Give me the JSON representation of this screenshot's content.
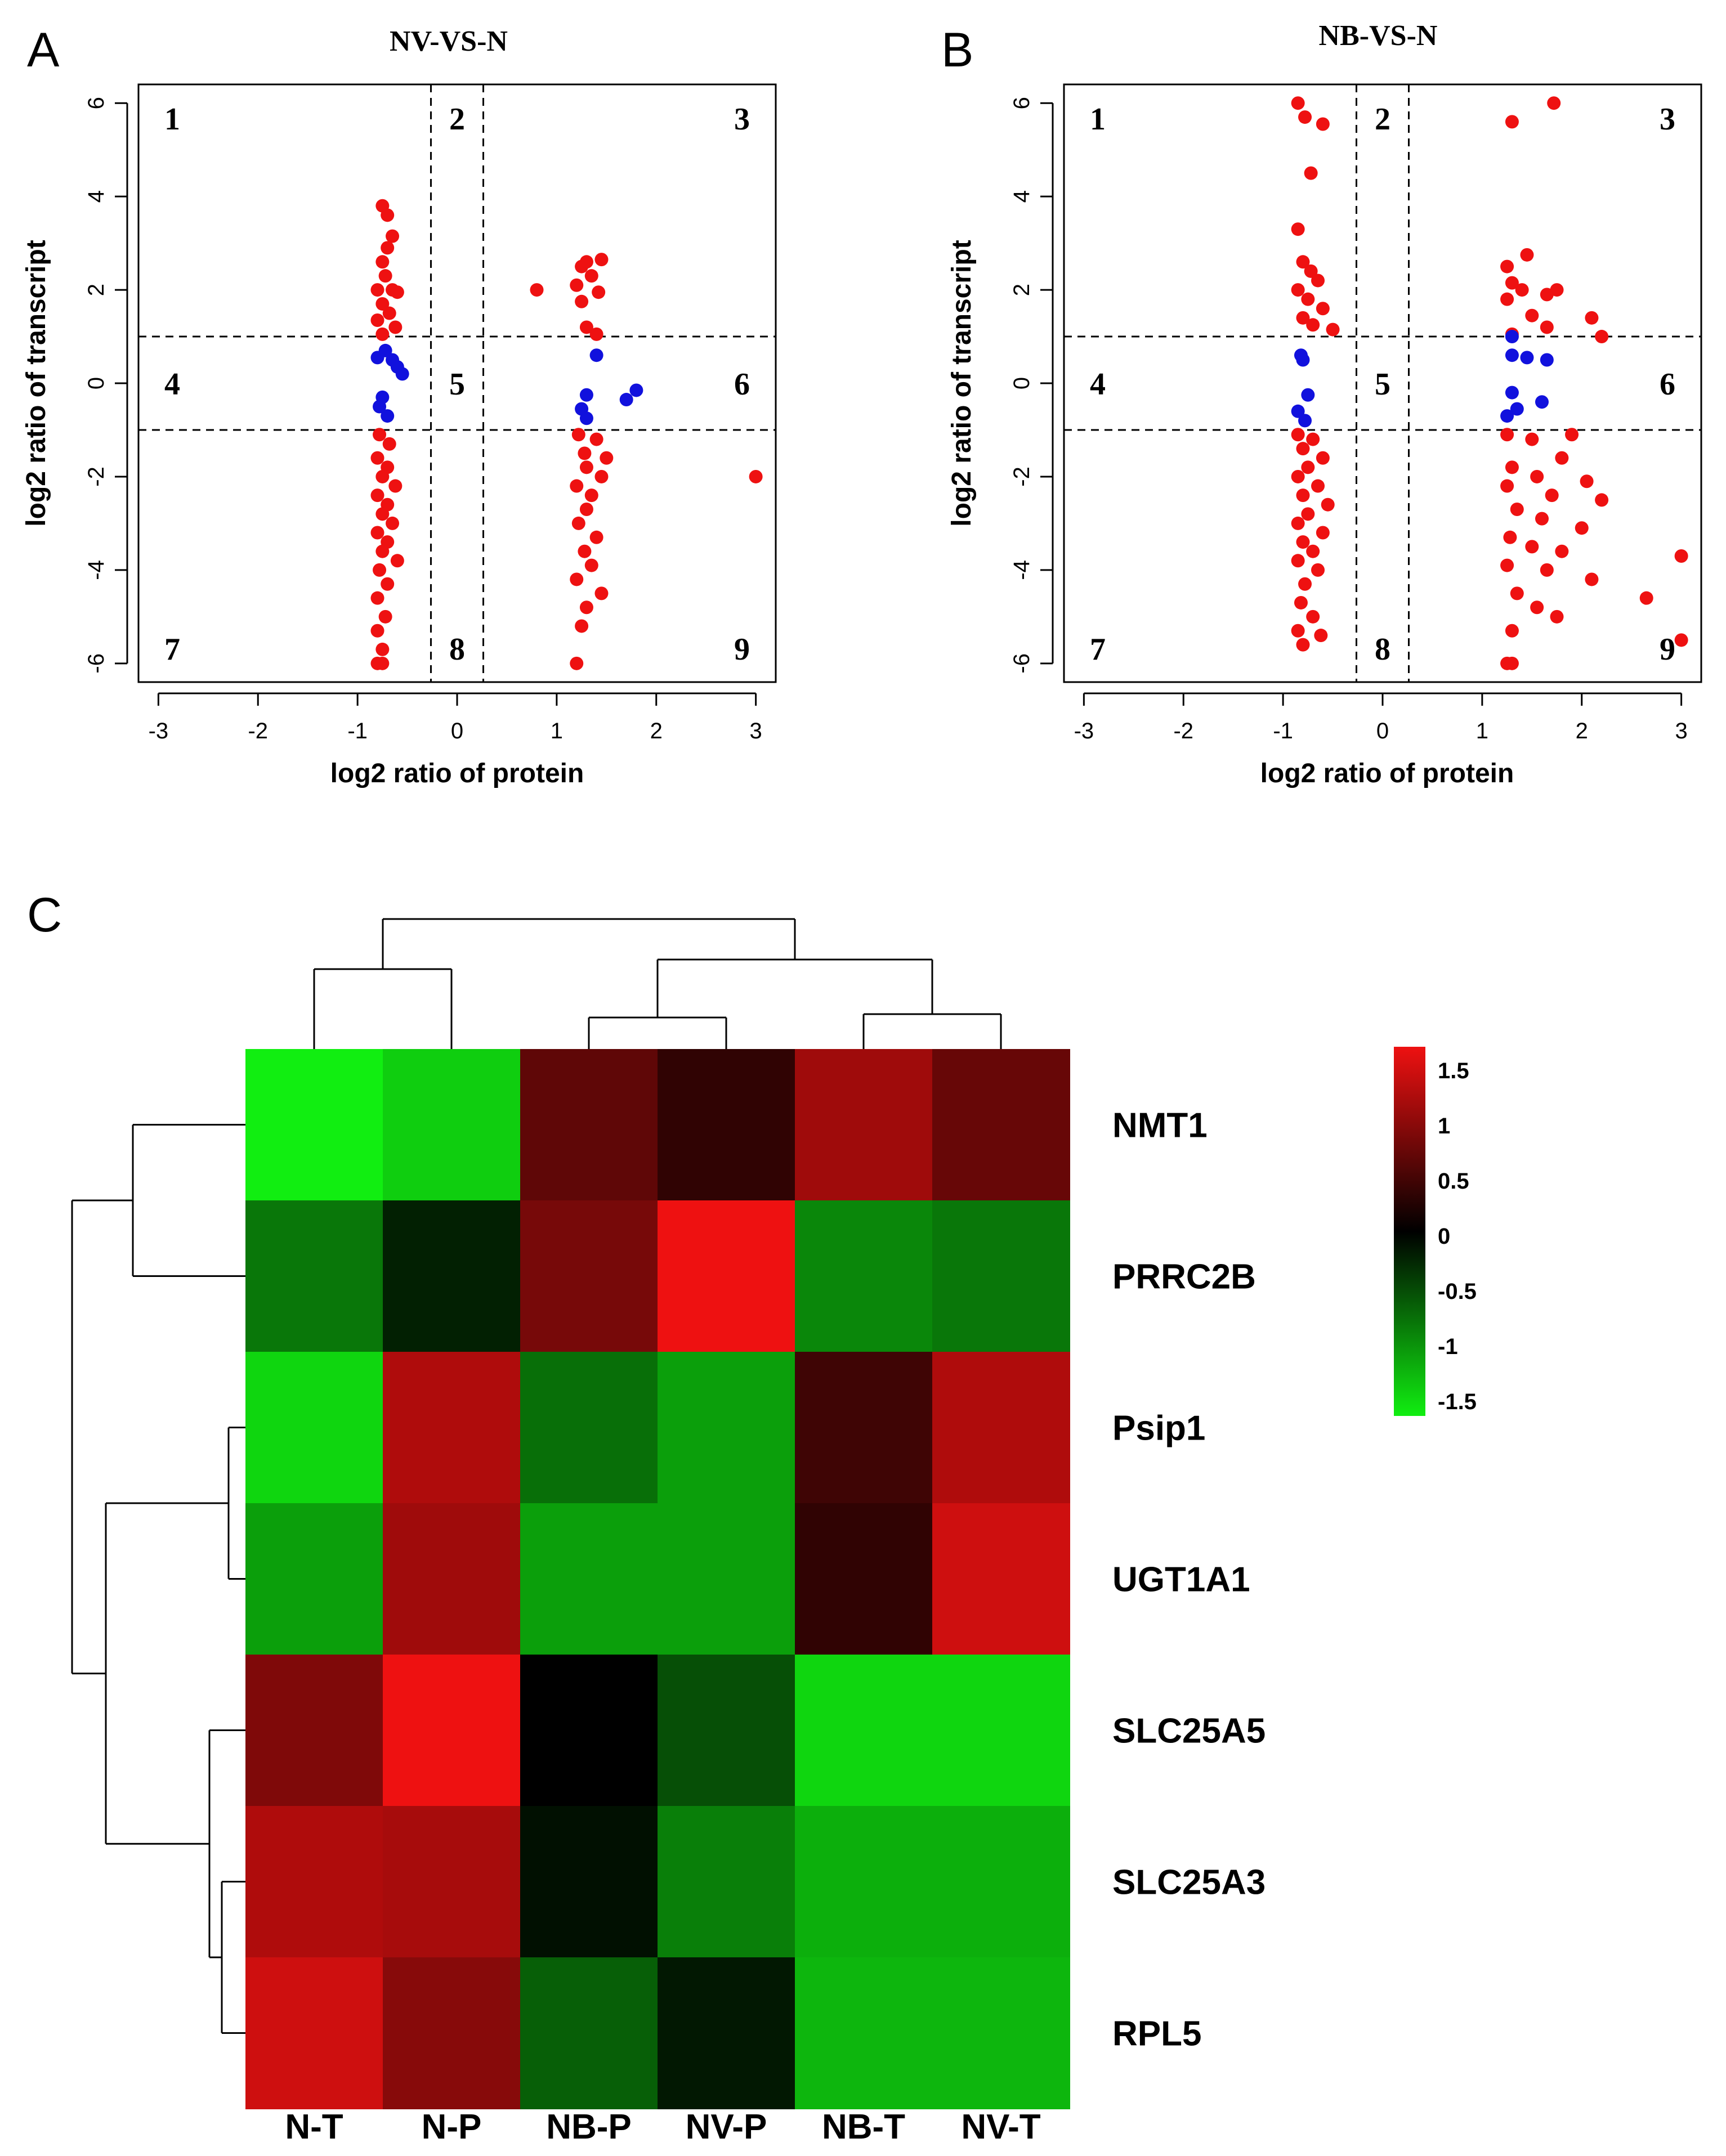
{
  "chart_data": [
    {
      "panel": "A",
      "type": "scatter",
      "title": "NV-VS-N",
      "xlabel": "log2 ratio of protein",
      "ylabel": "log2 ratio of transcript",
      "xlim": [
        -3.2,
        3.2
      ],
      "ylim": [
        -6.4,
        6.4
      ],
      "xticks": [
        -3,
        -2,
        -1,
        0,
        1,
        2,
        3
      ],
      "yticks": [
        -6,
        -4,
        -2,
        0,
        2,
        4,
        6
      ],
      "vlines": [
        -0.263,
        0.263
      ],
      "hlines": [
        -1,
        1
      ],
      "quadrant_labels": [
        "1",
        "2",
        "3",
        "4",
        "5",
        "6",
        "7",
        "8",
        "9"
      ],
      "colors": {
        "significant": "#ee1111",
        "non_significant": "#1111dd"
      },
      "red_points": [
        [
          -0.75,
          3.8
        ],
        [
          -0.7,
          3.6
        ],
        [
          -0.65,
          3.15
        ],
        [
          -0.7,
          2.9
        ],
        [
          -0.75,
          2.6
        ],
        [
          -0.72,
          2.3
        ],
        [
          -0.8,
          2.0
        ],
        [
          -0.65,
          2.0
        ],
        [
          -0.6,
          1.95
        ],
        [
          -0.75,
          1.7
        ],
        [
          -0.68,
          1.5
        ],
        [
          -0.8,
          1.35
        ],
        [
          -0.62,
          1.2
        ],
        [
          -0.75,
          1.05
        ],
        [
          -0.78,
          -1.1
        ],
        [
          -0.68,
          -1.3
        ],
        [
          -0.8,
          -1.6
        ],
        [
          -0.7,
          -1.8
        ],
        [
          -0.75,
          -2.0
        ],
        [
          -0.62,
          -2.2
        ],
        [
          -0.8,
          -2.4
        ],
        [
          -0.7,
          -2.6
        ],
        [
          -0.75,
          -2.8
        ],
        [
          -0.65,
          -3.0
        ],
        [
          -0.8,
          -3.2
        ],
        [
          -0.7,
          -3.4
        ],
        [
          -0.75,
          -3.6
        ],
        [
          -0.6,
          -3.8
        ],
        [
          -0.78,
          -4.0
        ],
        [
          -0.7,
          -4.3
        ],
        [
          -0.8,
          -4.6
        ],
        [
          -0.72,
          -5.0
        ],
        [
          -0.8,
          -5.3
        ],
        [
          -0.75,
          -5.7
        ],
        [
          -0.8,
          -6.0
        ],
        [
          -0.75,
          -6.0
        ],
        [
          0.8,
          2.0
        ],
        [
          1.25,
          2.5
        ],
        [
          1.3,
          2.6
        ],
        [
          1.45,
          2.65
        ],
        [
          1.35,
          2.3
        ],
        [
          1.2,
          2.1
        ],
        [
          1.42,
          1.95
        ],
        [
          1.25,
          1.75
        ],
        [
          1.3,
          1.2
        ],
        [
          1.4,
          1.05
        ],
        [
          1.22,
          -1.1
        ],
        [
          1.4,
          -1.2
        ],
        [
          1.28,
          -1.5
        ],
        [
          1.5,
          -1.6
        ],
        [
          1.3,
          -1.8
        ],
        [
          1.45,
          -2.0
        ],
        [
          1.2,
          -2.2
        ],
        [
          1.35,
          -2.4
        ],
        [
          1.3,
          -2.7
        ],
        [
          1.22,
          -3.0
        ],
        [
          1.4,
          -3.3
        ],
        [
          1.28,
          -3.6
        ],
        [
          1.35,
          -3.9
        ],
        [
          1.2,
          -4.2
        ],
        [
          1.45,
          -4.5
        ],
        [
          1.3,
          -4.8
        ],
        [
          1.25,
          -5.2
        ],
        [
          1.2,
          -6.0
        ],
        [
          3.0,
          -2.0
        ]
      ],
      "blue_points": [
        [
          -0.72,
          0.7
        ],
        [
          -0.65,
          0.5
        ],
        [
          -0.6,
          0.35
        ],
        [
          -0.55,
          0.2
        ],
        [
          -0.8,
          0.55
        ],
        [
          -0.75,
          -0.3
        ],
        [
          -0.78,
          -0.5
        ],
        [
          -0.7,
          -0.7
        ],
        [
          1.4,
          0.6
        ],
        [
          1.8,
          -0.15
        ],
        [
          1.7,
          -0.35
        ],
        [
          1.3,
          -0.25
        ],
        [
          1.25,
          -0.55
        ],
        [
          1.3,
          -0.75
        ]
      ]
    },
    {
      "panel": "B",
      "type": "scatter",
      "title": "NB-VS-N",
      "xlabel": "log2 ratio of protein",
      "ylabel": "log2 ratio of transcript",
      "xlim": [
        -3.2,
        3.2
      ],
      "ylim": [
        -6.4,
        6.4
      ],
      "xticks": [
        -3,
        -2,
        -1,
        0,
        1,
        2,
        3
      ],
      "yticks": [
        -6,
        -4,
        -2,
        0,
        2,
        4,
        6
      ],
      "vlines": [
        -0.263,
        0.263
      ],
      "hlines": [
        -1,
        1
      ],
      "quadrant_labels": [
        "1",
        "2",
        "3",
        "4",
        "5",
        "6",
        "7",
        "8",
        "9"
      ],
      "colors": {
        "significant": "#ee1111",
        "non_significant": "#1111dd"
      },
      "red_points": [
        [
          -0.85,
          6.0
        ],
        [
          -0.78,
          5.7
        ],
        [
          -0.6,
          5.55
        ],
        [
          -0.72,
          4.5
        ],
        [
          -0.85,
          3.3
        ],
        [
          -0.8,
          2.6
        ],
        [
          -0.72,
          2.4
        ],
        [
          -0.65,
          2.2
        ],
        [
          -0.85,
          2.0
        ],
        [
          -0.75,
          1.8
        ],
        [
          -0.6,
          1.6
        ],
        [
          -0.8,
          1.4
        ],
        [
          -0.7,
          1.25
        ],
        [
          -0.5,
          1.15
        ],
        [
          -0.85,
          -1.1
        ],
        [
          -0.7,
          -1.2
        ],
        [
          -0.8,
          -1.4
        ],
        [
          -0.6,
          -1.6
        ],
        [
          -0.75,
          -1.8
        ],
        [
          -0.85,
          -2.0
        ],
        [
          -0.65,
          -2.2
        ],
        [
          -0.8,
          -2.4
        ],
        [
          -0.55,
          -2.6
        ],
        [
          -0.75,
          -2.8
        ],
        [
          -0.85,
          -3.0
        ],
        [
          -0.6,
          -3.2
        ],
        [
          -0.8,
          -3.4
        ],
        [
          -0.7,
          -3.6
        ],
        [
          -0.85,
          -3.8
        ],
        [
          -0.65,
          -4.0
        ],
        [
          -0.78,
          -4.3
        ],
        [
          -0.82,
          -4.7
        ],
        [
          -0.7,
          -5.0
        ],
        [
          -0.85,
          -5.3
        ],
        [
          -0.62,
          -5.4
        ],
        [
          -0.8,
          -5.6
        ],
        [
          1.72,
          6.0
        ],
        [
          1.3,
          5.6
        ],
        [
          1.25,
          2.5
        ],
        [
          1.45,
          2.75
        ],
        [
          1.3,
          2.15
        ],
        [
          1.4,
          2.0
        ],
        [
          1.65,
          1.9
        ],
        [
          1.75,
          2.0
        ],
        [
          1.25,
          1.8
        ],
        [
          1.5,
          1.45
        ],
        [
          1.65,
          1.2
        ],
        [
          2.1,
          1.4
        ],
        [
          2.2,
          1.0
        ],
        [
          1.3,
          1.05
        ],
        [
          1.25,
          -1.1
        ],
        [
          1.5,
          -1.2
        ],
        [
          1.9,
          -1.1
        ],
        [
          1.8,
          -1.6
        ],
        [
          1.3,
          -1.8
        ],
        [
          1.55,
          -2.0
        ],
        [
          2.05,
          -2.1
        ],
        [
          1.25,
          -2.2
        ],
        [
          1.7,
          -2.4
        ],
        [
          2.2,
          -2.5
        ],
        [
          1.35,
          -2.7
        ],
        [
          1.6,
          -2.9
        ],
        [
          2.0,
          -3.1
        ],
        [
          1.28,
          -3.3
        ],
        [
          1.5,
          -3.5
        ],
        [
          1.8,
          -3.6
        ],
        [
          1.25,
          -3.9
        ],
        [
          1.65,
          -4.0
        ],
        [
          2.1,
          -4.2
        ],
        [
          1.35,
          -4.5
        ],
        [
          1.55,
          -4.8
        ],
        [
          1.75,
          -5.0
        ],
        [
          1.3,
          -5.3
        ],
        [
          1.25,
          -6.0
        ],
        [
          1.3,
          -6.0
        ],
        [
          2.65,
          -4.6
        ],
        [
          3.0,
          -3.7
        ],
        [
          3.0,
          -5.5
        ]
      ],
      "blue_points": [
        [
          -0.82,
          0.6
        ],
        [
          -0.8,
          0.5
        ],
        [
          -0.75,
          -0.25
        ],
        [
          -0.85,
          -0.6
        ],
        [
          -0.78,
          -0.8
        ],
        [
          1.3,
          0.6
        ],
        [
          1.45,
          0.55
        ],
        [
          1.65,
          0.5
        ],
        [
          1.3,
          1.0
        ],
        [
          1.3,
          -0.2
        ],
        [
          1.6,
          -0.4
        ],
        [
          1.35,
          -0.55
        ],
        [
          1.25,
          -0.7
        ]
      ]
    },
    {
      "panel": "C",
      "type": "heatmap",
      "columns": [
        "N-T",
        "N-P",
        "NB-P",
        "NV-P",
        "NB-T",
        "NV-T"
      ],
      "rows": [
        "NMT1",
        "PRRC2B",
        "Psip1",
        "UGT1A1",
        "SLC25A5",
        "SLC25A3",
        "RPL5"
      ],
      "values": [
        [
          -1.5,
          -1.3,
          0.6,
          0.3,
          1.0,
          0.65
        ],
        [
          -0.75,
          -0.2,
          0.75,
          1.6,
          -0.85,
          -0.75
        ],
        [
          -1.35,
          1.1,
          -0.7,
          -1.0,
          0.4,
          1.1
        ],
        [
          -1.0,
          1.0,
          -1.0,
          -1.0,
          0.3,
          1.3
        ],
        [
          0.8,
          1.5,
          0.0,
          -0.5,
          -1.35,
          -1.35
        ],
        [
          1.1,
          1.05,
          -0.1,
          -0.8,
          -1.1,
          -1.1
        ],
        [
          1.3,
          0.85,
          -0.6,
          -0.15,
          -1.15,
          -1.15
        ]
      ],
      "color_scale": {
        "low": "#11ee11",
        "mid": "#000000",
        "high": "#ee1111",
        "min": -1.5,
        "max": 1.5
      },
      "legend_ticks": [
        "1.5",
        "1",
        "0.5",
        "0",
        "-0.5",
        "-1",
        "-1.5"
      ],
      "column_dendrogram": "((N-T,N-P),((NB-P,NV-P),(NB-T,NV-T)))",
      "row_dendrogram": "((NMT1,PRRC2B),((Psip1,UGT1A1),(SLC25A5,(SLC25A3,RPL5))))"
    }
  ]
}
